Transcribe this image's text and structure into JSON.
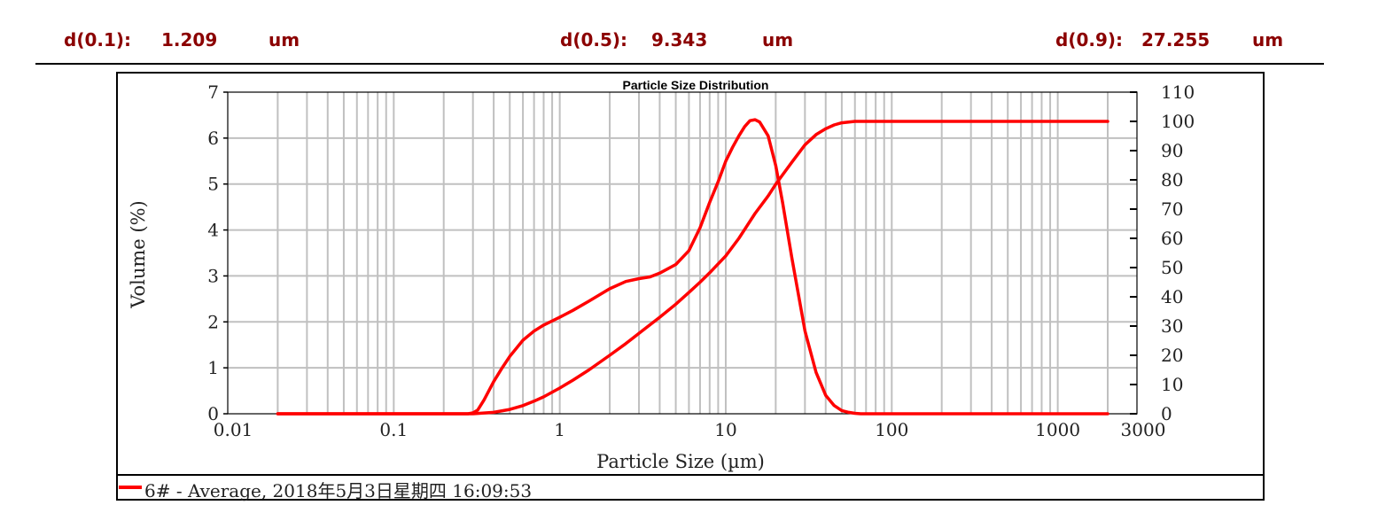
{
  "stats": [
    {
      "label": "d(0.1):",
      "value": "1.209",
      "unit": "um"
    },
    {
      "label": "d(0.5):",
      "value": "9.343",
      "unit": "um"
    },
    {
      "label": "d(0.9):",
      "value": "27.255",
      "unit": "um"
    }
  ],
  "chart_data": {
    "type": "line",
    "title": "Particle Size Distribution",
    "xlabel": "Particle Size (µm)",
    "ylabel": "Volume (%)",
    "x_scale": "log",
    "xlim": [
      0.01,
      3000
    ],
    "ylim": [
      0,
      7
    ],
    "y2lim": [
      0,
      110
    ],
    "x_tick_labels": [
      "0.01",
      "0.1",
      "1",
      "10",
      "100",
      "1000",
      "3000"
    ],
    "y_tick_labels": [
      "0",
      "1",
      "2",
      "3",
      "4",
      "5",
      "6",
      "7"
    ],
    "y2_tick_labels": [
      "0",
      "10",
      "20",
      "30",
      "40",
      "50",
      "60",
      "70",
      "80",
      "90",
      "100",
      "110"
    ],
    "grid": true,
    "line_color": "#ff0000",
    "legend": {
      "placement": "bottom",
      "label": "6# - Average, 2018年5月3日星期四 16:09:53"
    },
    "series": [
      {
        "axis": "left",
        "x": [
          0.02,
          0.28,
          0.3,
          0.32,
          0.35,
          0.4,
          0.45,
          0.5,
          0.6,
          0.7,
          0.8,
          1.0,
          1.2,
          1.5,
          2.0,
          2.5,
          3.0,
          3.5,
          4.0,
          5.0,
          6.0,
          7.0,
          8.0,
          9.0,
          10.0,
          11.0,
          12.0,
          13.0,
          14.0,
          15.0,
          16.0,
          18.0,
          20.0,
          22.0,
          25.0,
          30.0,
          35.0,
          40.0,
          45.0,
          50.0,
          55.0,
          60.0,
          65.0,
          70.0,
          100.0,
          2000.0
        ],
        "y": [
          0,
          0,
          0.02,
          0.08,
          0.3,
          0.7,
          1.0,
          1.25,
          1.6,
          1.8,
          1.93,
          2.1,
          2.25,
          2.45,
          2.72,
          2.88,
          2.94,
          2.98,
          3.06,
          3.25,
          3.55,
          4.05,
          4.6,
          5.05,
          5.5,
          5.8,
          6.05,
          6.25,
          6.38,
          6.4,
          6.35,
          6.05,
          5.4,
          4.6,
          3.4,
          1.8,
          0.9,
          0.4,
          0.18,
          0.07,
          0.03,
          0.01,
          0,
          0,
          0,
          0
        ]
      },
      {
        "axis": "right",
        "x": [
          0.02,
          0.3,
          0.4,
          0.5,
          0.6,
          0.7,
          0.8,
          1.0,
          1.2,
          1.5,
          2.0,
          2.5,
          3.0,
          4.0,
          5.0,
          6.0,
          7.0,
          8.0,
          10.0,
          12.0,
          15.0,
          18.0,
          20.0,
          25.0,
          30.0,
          35.0,
          40.0,
          45.0,
          50.0,
          60.0,
          100.0,
          2000.0
        ],
        "y": [
          0,
          0,
          0.5,
          1.5,
          2.8,
          4.3,
          5.8,
          8.8,
          11.5,
          15.0,
          20.0,
          24.0,
          27.5,
          33.0,
          37.5,
          41.5,
          45.0,
          48.2,
          54.0,
          60.0,
          68.5,
          74.5,
          78.5,
          86.0,
          92.0,
          95.5,
          97.5,
          98.8,
          99.5,
          100,
          100,
          100
        ]
      }
    ]
  }
}
